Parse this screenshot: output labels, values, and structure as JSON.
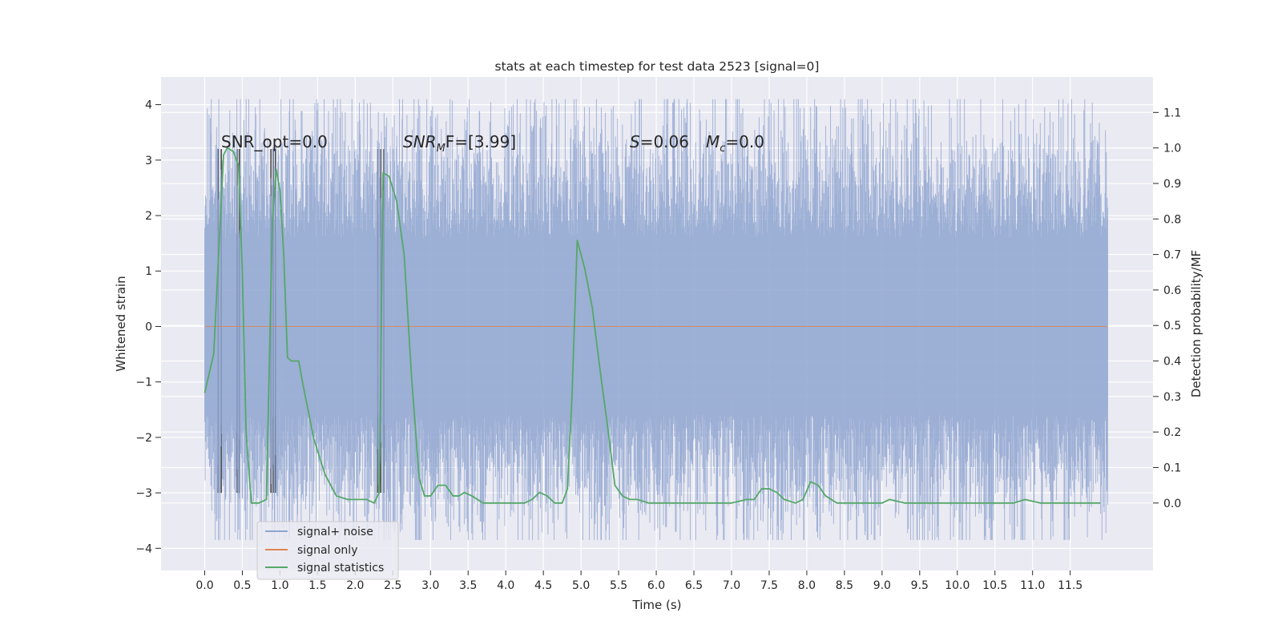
{
  "chart_data": {
    "type": "line",
    "title": "stats at each timestep for test data 2523 [signal=0]",
    "xlabel": "Time (s)",
    "ylabel": "Whitened strain",
    "y2label": "Detection probability/MF",
    "xlim": [
      -0.58,
      12.6
    ],
    "ylim": [
      -4.4,
      4.5
    ],
    "y2lim": [
      -0.19,
      1.2
    ],
    "xticks": [
      0.0,
      0.5,
      1.0,
      1.5,
      2.0,
      2.5,
      3.0,
      3.5,
      4.0,
      4.5,
      5.0,
      5.5,
      6.0,
      6.5,
      7.0,
      7.5,
      8.0,
      8.5,
      9.0,
      9.5,
      10.0,
      10.5,
      11.0,
      11.5
    ],
    "xtick_labels": [
      "0.0",
      "0.5",
      "1.0",
      "1.5",
      "2.0",
      "2.5",
      "3.0",
      "3.5",
      "4.0",
      "4.5",
      "5.0",
      "5.5",
      "6.0",
      "6.5",
      "7.0",
      "7.5",
      "8.0",
      "8.5",
      "9.0",
      "9.5",
      "10.0",
      "10.5",
      "11.0",
      "11.5"
    ],
    "yticks": [
      -4,
      -3,
      -2,
      -1,
      0,
      1,
      2,
      3,
      4
    ],
    "ytick_labels": [
      "−4",
      "−3",
      "−2",
      "−1",
      "0",
      "1",
      "2",
      "3",
      "4"
    ],
    "y2ticks": [
      0.0,
      0.1,
      0.2,
      0.3,
      0.4,
      0.5,
      0.6,
      0.7,
      0.8,
      0.9,
      1.0,
      1.1
    ],
    "y2tick_labels": [
      "0.0",
      "0.1",
      "0.2",
      "0.3",
      "0.4",
      "0.5",
      "0.6",
      "0.7",
      "0.8",
      "0.9",
      "1.0",
      "1.1"
    ],
    "grid": true,
    "legend_position": "lower-left",
    "annotations": {
      "snr_opt": "SNR_opt=0.0",
      "snr_mf_main": "SNR",
      "snr_mf_sub": "M",
      "snr_mf_rest": "F=[3.99]",
      "s_main": "S",
      "s_rest": "=0.06",
      "mc_main": "M",
      "mc_sub": "c",
      "mc_rest": "=0.0"
    },
    "series": [
      {
        "name": "signal+ noise",
        "color": "#8fa5d0",
        "axis": "left",
        "style": "noise",
        "x_range": [
          0.0,
          12.0
        ],
        "envelope": [
          2.9,
          2.9
        ],
        "core_band": [
          -1.4,
          1.4
        ]
      },
      {
        "name": "signal only",
        "color": "#dd8452",
        "axis": "left",
        "x": [
          0.0,
          12.0
        ],
        "y": [
          0.0,
          0.0
        ]
      },
      {
        "name": "signal statistics",
        "color": "#55a868",
        "axis": "right",
        "x": [
          0.0,
          0.12,
          0.25,
          0.3,
          0.38,
          0.45,
          0.5,
          0.55,
          0.62,
          0.72,
          0.82,
          0.9,
          0.95,
          1.0,
          1.05,
          1.1,
          1.15,
          1.25,
          1.3,
          1.45,
          1.6,
          1.75,
          1.9,
          2.05,
          2.15,
          2.25,
          2.32,
          2.37,
          2.45,
          2.55,
          2.65,
          2.75,
          2.85,
          2.92,
          3.0,
          3.1,
          3.2,
          3.3,
          3.38,
          3.45,
          3.55,
          3.7,
          3.9,
          4.1,
          4.25,
          4.35,
          4.45,
          4.55,
          4.65,
          4.75,
          4.82,
          4.88,
          4.95,
          5.05,
          5.15,
          5.25,
          5.35,
          5.45,
          5.55,
          5.65,
          5.75,
          5.9,
          6.1,
          6.4,
          6.7,
          7.0,
          7.2,
          7.3,
          7.4,
          7.5,
          7.6,
          7.7,
          7.85,
          7.95,
          8.05,
          8.15,
          8.25,
          8.4,
          8.6,
          8.8,
          9.0,
          9.1,
          9.3,
          9.6,
          10.0,
          10.4,
          10.75,
          10.9,
          11.1,
          11.5,
          11.9
        ],
        "y": [
          0.31,
          0.42,
          0.98,
          1.0,
          0.99,
          0.95,
          0.65,
          0.2,
          0.0,
          0.0,
          0.01,
          0.8,
          0.94,
          0.88,
          0.7,
          0.41,
          0.4,
          0.4,
          0.34,
          0.18,
          0.08,
          0.02,
          0.01,
          0.01,
          0.01,
          0.0,
          0.03,
          0.93,
          0.92,
          0.85,
          0.7,
          0.35,
          0.07,
          0.02,
          0.02,
          0.05,
          0.05,
          0.02,
          0.02,
          0.03,
          0.02,
          0.0,
          0.0,
          0.0,
          0.0,
          0.01,
          0.03,
          0.02,
          0.0,
          0.0,
          0.04,
          0.3,
          0.74,
          0.66,
          0.55,
          0.38,
          0.22,
          0.05,
          0.02,
          0.01,
          0.01,
          0.0,
          0.0,
          0.0,
          0.0,
          0.0,
          0.01,
          0.01,
          0.04,
          0.04,
          0.03,
          0.01,
          0.0,
          0.01,
          0.06,
          0.05,
          0.02,
          0.0,
          0.0,
          0.0,
          0.0,
          0.01,
          0.0,
          0.0,
          0.0,
          0.0,
          0.0,
          0.01,
          0.0,
          0.0,
          0.0
        ]
      }
    ],
    "vertical_markers": {
      "color": "#4a4a4a",
      "x": [
        0.18,
        0.22,
        0.43,
        0.46,
        0.88,
        0.91,
        0.94,
        2.3,
        2.34,
        2.38
      ],
      "y_range": [
        -3.0,
        3.2
      ]
    }
  }
}
